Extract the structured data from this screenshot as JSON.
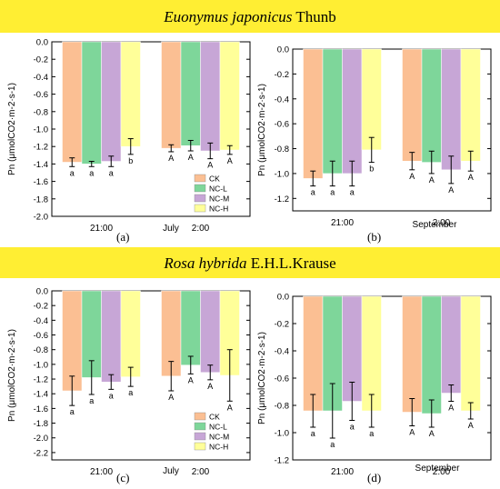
{
  "banners": {
    "top": {
      "species": "Euonymus japonicus",
      "authority": " Thunb"
    },
    "bottom": {
      "species": "Rosa hybrida",
      "authority": " E.H.L.Krause"
    }
  },
  "colors": {
    "CK": "#fbbf93",
    "NC-L": "#7ed69a",
    "NC-M": "#c7a6d6",
    "NC-H": "#ffff99"
  },
  "chart_data": [
    {
      "panel": "(a)",
      "type": "bar",
      "ylabel": "Pn (μmolCO2·m-2·s-1)",
      "ylim": [
        -2.0,
        0.0
      ],
      "yticks": [
        0.0,
        -0.2,
        -0.4,
        -0.6,
        -0.8,
        -1.0,
        -1.2,
        -1.4,
        -1.6,
        -1.8,
        -2.0
      ],
      "tick_labels": [
        "0.0",
        "-0.2",
        "-0.4",
        "-0.6",
        "-0.8",
        "-1.0",
        "-1.2",
        "-1.4",
        "-1.6",
        "-1.8",
        "-2.0"
      ],
      "categories": [
        "21:00",
        "2:00"
      ],
      "month": "July",
      "legend": {
        "items": [
          "CK",
          "NC-L",
          "NC-M",
          "NC-H"
        ],
        "position": "bottom-right"
      },
      "series": [
        {
          "name": "CK",
          "values": [
            -1.38,
            -1.22
          ],
          "errors": [
            0.05,
            0.04
          ],
          "letters": [
            "a",
            "A"
          ]
        },
        {
          "name": "NC-L",
          "values": [
            -1.4,
            -1.19
          ],
          "errors": [
            0.03,
            0.06
          ],
          "letters": [
            "a",
            "A"
          ]
        },
        {
          "name": "NC-M",
          "values": [
            -1.37,
            -1.25
          ],
          "errors": [
            0.06,
            0.09
          ],
          "letters": [
            "a",
            "A"
          ]
        },
        {
          "name": "NC-H",
          "values": [
            -1.2,
            -1.24
          ],
          "errors": [
            0.09,
            0.05
          ],
          "letters": [
            "b",
            "A"
          ]
        }
      ]
    },
    {
      "panel": "(b)",
      "type": "bar",
      "ylabel": "Pn (μmolCO2·m-2·s-1)",
      "ylim": [
        -1.3,
        0.0
      ],
      "yticks": [
        0.0,
        -0.2,
        -0.4,
        -0.6,
        -0.8,
        -1.0,
        -1.2
      ],
      "tick_labels": [
        "0.0",
        "-0.2",
        "-0.4",
        "-0.6",
        "-0.8",
        "-1.0",
        "-1.2"
      ],
      "categories": [
        "21:00",
        "2:00"
      ],
      "month": "September",
      "series": [
        {
          "name": "CK",
          "values": [
            -1.04,
            -0.9
          ],
          "errors": [
            0.06,
            0.07
          ],
          "letters": [
            "a",
            "A"
          ]
        },
        {
          "name": "NC-L",
          "values": [
            -1.0,
            -0.91
          ],
          "errors": [
            0.1,
            0.09
          ],
          "letters": [
            "a",
            "A"
          ]
        },
        {
          "name": "NC-M",
          "values": [
            -1.0,
            -0.97
          ],
          "errors": [
            0.1,
            0.11
          ],
          "letters": [
            "a",
            "A"
          ]
        },
        {
          "name": "NC-H",
          "values": [
            -0.81,
            -0.9
          ],
          "errors": [
            0.1,
            0.08
          ],
          "letters": [
            "b",
            "A"
          ]
        }
      ]
    },
    {
      "panel": "(c)",
      "type": "bar",
      "ylabel": "Pn (μmolCO2·m-2·s-1)",
      "ylim": [
        -2.3,
        0.0
      ],
      "yticks": [
        0.0,
        -0.2,
        -0.4,
        -0.6,
        -0.8,
        -1.0,
        -1.2,
        -1.4,
        -1.6,
        -1.8,
        -2.0,
        -2.2
      ],
      "tick_labels": [
        "0.0",
        "-0.2",
        "-0.4",
        "-0.6",
        "-0.8",
        "-1.0",
        "-1.2",
        "-1.4",
        "-1.6",
        "-1.8",
        "-2.0",
        "-2.2"
      ],
      "categories": [
        "21:00",
        "2:00"
      ],
      "month": "July",
      "legend": {
        "items": [
          "CK",
          "NC-L",
          "NC-M",
          "NC-H"
        ],
        "position": "bottom-right"
      },
      "series": [
        {
          "name": "CK",
          "values": [
            -1.36,
            -1.16
          ],
          "errors": [
            0.2,
            0.2
          ],
          "letters": [
            "a",
            "A"
          ]
        },
        {
          "name": "NC-L",
          "values": [
            -1.18,
            -1.01
          ],
          "errors": [
            0.23,
            0.12
          ],
          "letters": [
            "a",
            "A"
          ]
        },
        {
          "name": "NC-M",
          "values": [
            -1.24,
            -1.11
          ],
          "errors": [
            0.1,
            0.1
          ],
          "letters": [
            "a",
            "A"
          ]
        },
        {
          "name": "NC-H",
          "values": [
            -1.17,
            -1.15
          ],
          "errors": [
            0.13,
            0.35
          ],
          "letters": [
            "a",
            "A"
          ]
        }
      ]
    },
    {
      "panel": "(d)",
      "type": "bar",
      "ylabel": "Pn (μmolCO2·m-2·s-1)",
      "ylim": [
        -1.2,
        0.0
      ],
      "yticks": [
        0.0,
        -0.2,
        -0.4,
        -0.6,
        -0.8,
        -1.0,
        -1.2
      ],
      "tick_labels": [
        "0.0",
        "-0.2",
        "-0.4",
        "-0.6",
        "-0.8",
        "-1.0",
        "-1.2"
      ],
      "categories": [
        "21:00",
        "2:00"
      ],
      "month": "September",
      "series": [
        {
          "name": "CK",
          "values": [
            -0.84,
            -0.85
          ],
          "errors": [
            0.12,
            0.1
          ],
          "letters": [
            "a",
            "A"
          ]
        },
        {
          "name": "NC-L",
          "values": [
            -0.84,
            -0.86
          ],
          "errors": [
            0.2,
            0.1
          ],
          "letters": [
            "a",
            "A"
          ]
        },
        {
          "name": "NC-M",
          "values": [
            -0.77,
            -0.71
          ],
          "errors": [
            0.14,
            0.06
          ],
          "letters": [
            "a",
            "A"
          ]
        },
        {
          "name": "NC-H",
          "values": [
            -0.84,
            -0.84
          ],
          "errors": [
            0.12,
            0.06
          ],
          "letters": [
            "a",
            "A"
          ]
        }
      ]
    }
  ]
}
